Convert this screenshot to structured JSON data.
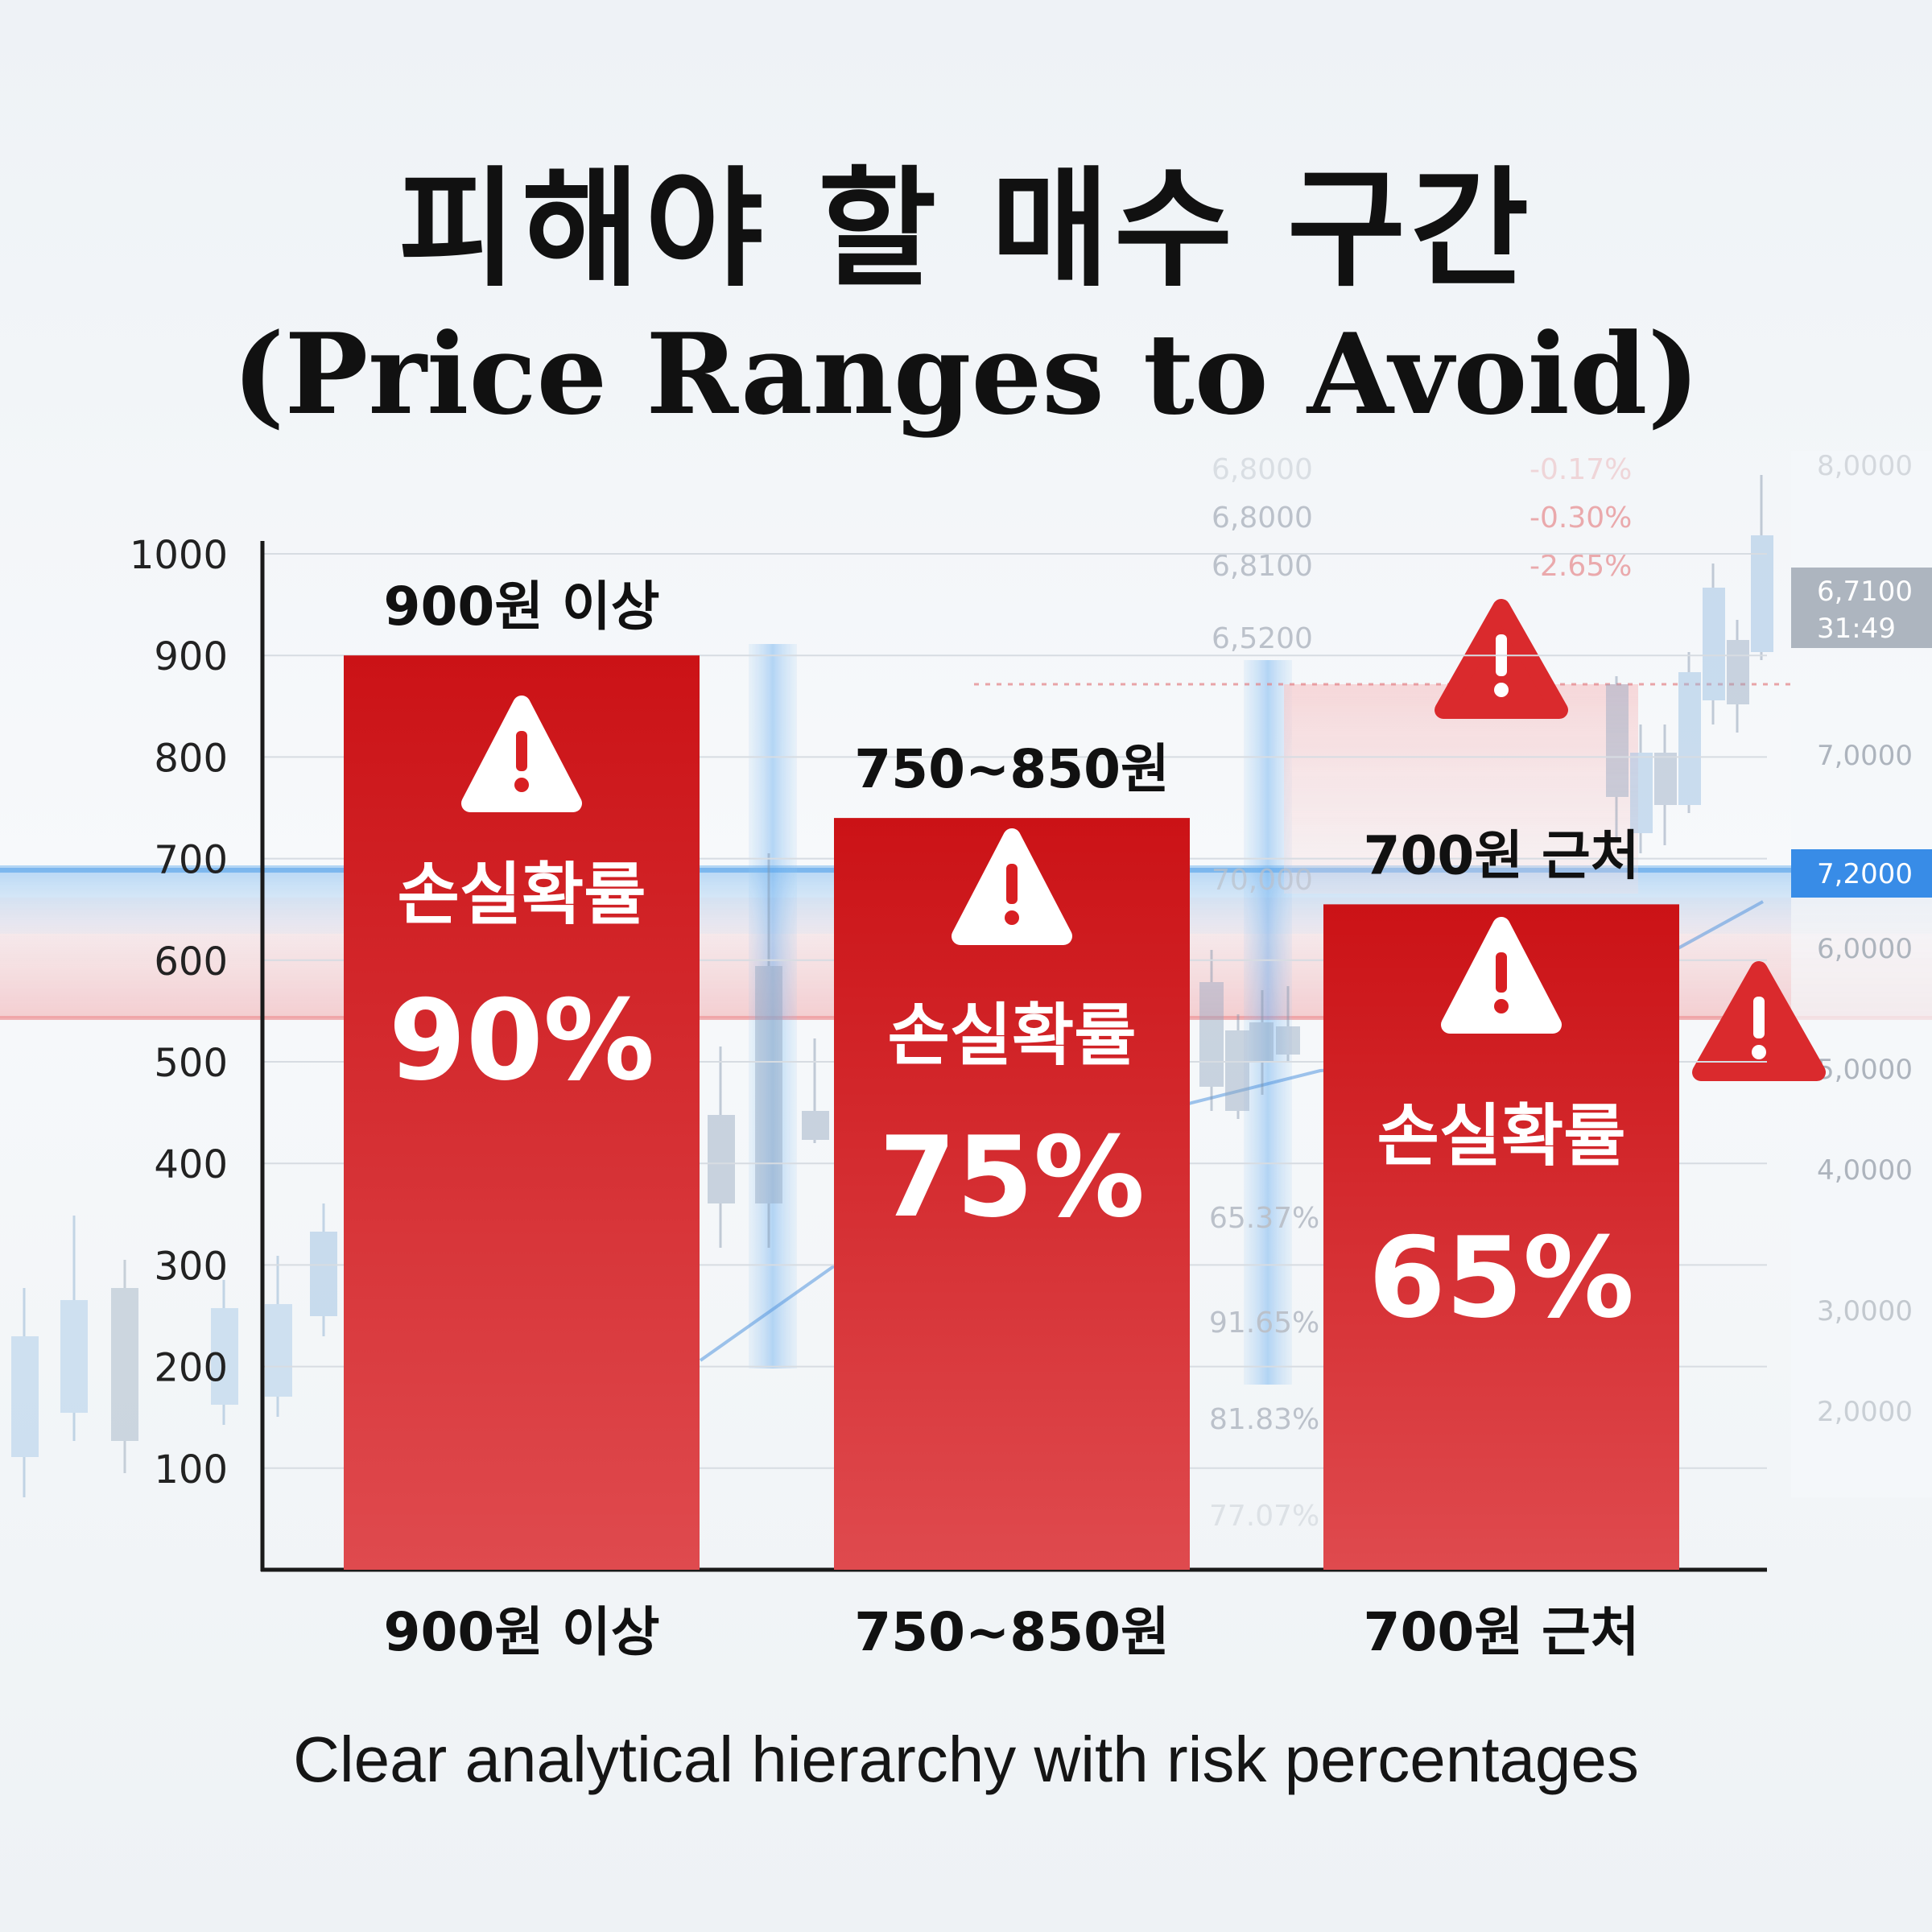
{
  "title": {
    "ko": "피해야 할 매수 구간",
    "en": "(Price Ranges to Avoid)"
  },
  "caption": "Clear analytical hierarchy with risk percentages",
  "chart_data": {
    "type": "bar",
    "categories": [
      "900원 이상",
      "750~850원",
      "700원 근처"
    ],
    "values": [
      900,
      740,
      655
    ],
    "top_labels": [
      "900원 이상",
      "750~850원",
      "700원 근처"
    ],
    "bar_caption": "손실확률",
    "loss_probability_labels": [
      "90%",
      "75%",
      "65%"
    ],
    "loss_probability": [
      90,
      75,
      65
    ],
    "yticks": [
      100,
      200,
      300,
      400,
      500,
      600,
      700,
      800,
      900,
      1000
    ],
    "ylim": [
      0,
      1000
    ],
    "grid": true,
    "colors": {
      "bar": "#cf1518",
      "bar_light": "#dc4a4e",
      "warning": "#d81f22",
      "highlight_blue": "#6aaeea",
      "highlight_red": "#f4b8bb"
    },
    "background_right_axis": [
      "8,0000",
      "6,7100",
      "31:49",
      "7,0000",
      "7,2000",
      "6,0000",
      "5,0000",
      "4,0000",
      "3,0000",
      "2,0000"
    ],
    "background_prices": [
      "6,8000",
      "6,8000",
      "6,8100",
      "6,5200",
      "70,000"
    ],
    "background_changes": [
      "-0.17%",
      "-0.30%",
      "-2.65%"
    ],
    "background_percents": [
      "65.37%",
      "91.65%",
      "81.83%",
      "77.07%"
    ]
  }
}
